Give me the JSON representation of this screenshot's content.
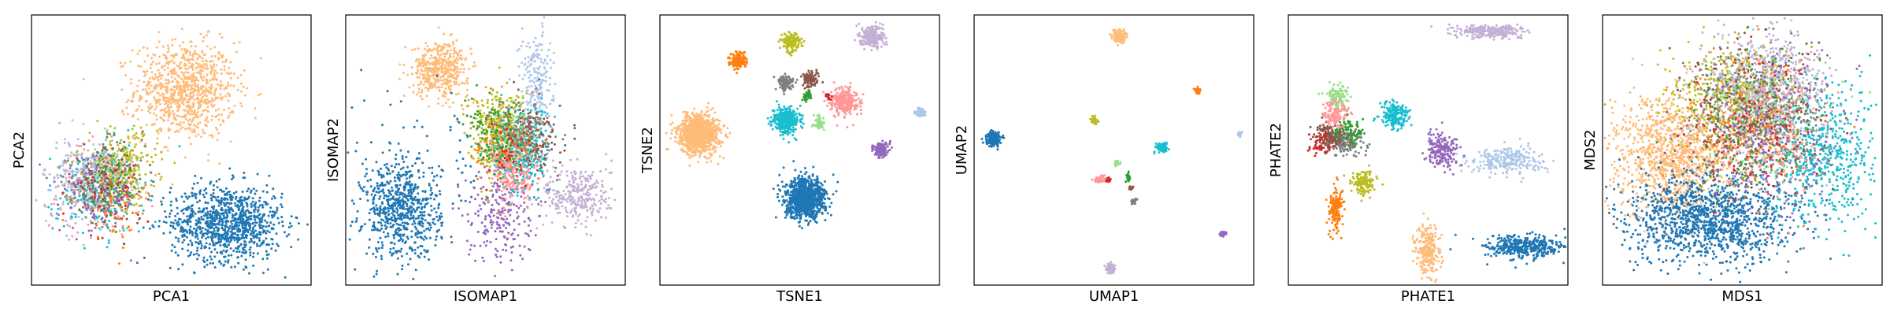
{
  "palette": {
    "blue": "#1f77b4",
    "peach": "#ffbb78",
    "orange": "#ff7f0e",
    "olive": "#bcbd22",
    "lilac": "#c5b0d5",
    "gray": "#7f7f7f",
    "brown": "#8c564b",
    "green": "#2ca02c",
    "red": "#d62728",
    "pink": "#ff9896",
    "cyan": "#17becf",
    "lightgreen": "#98df8a",
    "purple": "#9467bd",
    "lightblue": "#aec7e8"
  },
  "chart_data": [
    {
      "type": "scatter",
      "title": "",
      "xlabel": "PCA1",
      "ylabel": "PCA2",
      "xlim": [
        0,
        100
      ],
      "ylim": [
        0,
        100
      ],
      "grid": false,
      "legend": "none",
      "clusters": [
        {
          "color": "peach",
          "cx": 55,
          "cy": 72,
          "sx": 9,
          "sy": 9,
          "n": 900
        },
        {
          "color": "blue",
          "cx": 70,
          "cy": 23,
          "sx": 10,
          "sy": 7,
          "n": 1000
        },
        {
          "color": "lilac",
          "cx": 18,
          "cy": 38,
          "sx": 7,
          "sy": 8,
          "n": 180
        },
        {
          "color": "pink",
          "cx": 25,
          "cy": 36,
          "sx": 7,
          "sy": 8,
          "n": 180
        },
        {
          "color": "cyan",
          "cx": 24,
          "cy": 34,
          "sx": 8,
          "sy": 8,
          "n": 200
        },
        {
          "color": "olive",
          "cx": 33,
          "cy": 44,
          "sx": 6,
          "sy": 7,
          "n": 200
        },
        {
          "color": "gray",
          "cx": 26,
          "cy": 38,
          "sx": 7,
          "sy": 7,
          "n": 130
        },
        {
          "color": "brown",
          "cx": 27,
          "cy": 37,
          "sx": 7,
          "sy": 7,
          "n": 100
        },
        {
          "color": "purple",
          "cx": 24,
          "cy": 33,
          "sx": 7,
          "sy": 7,
          "n": 120
        },
        {
          "color": "green",
          "cx": 28,
          "cy": 38,
          "sx": 6,
          "sy": 7,
          "n": 80
        },
        {
          "color": "orange",
          "cx": 30,
          "cy": 32,
          "sx": 7,
          "sy": 7,
          "n": 90
        },
        {
          "color": "lightblue",
          "cx": 20,
          "cy": 40,
          "sx": 6,
          "sy": 7,
          "n": 100
        },
        {
          "color": "lightgreen",
          "cx": 28,
          "cy": 42,
          "sx": 6,
          "sy": 6,
          "n": 60
        },
        {
          "color": "red",
          "cx": 26,
          "cy": 36,
          "sx": 6,
          "sy": 6,
          "n": 40
        }
      ]
    },
    {
      "type": "scatter",
      "title": "",
      "xlabel": "ISOMAP1",
      "ylabel": "ISOMAP2",
      "xlim": [
        0,
        100
      ],
      "ylim": [
        0,
        100
      ],
      "grid": false,
      "legend": "none",
      "clusters": [
        {
          "color": "blue",
          "cx": 20,
          "cy": 28,
          "sx": 7,
          "sy": 9,
          "n": 700
        },
        {
          "color": "peach",
          "cx": 34,
          "cy": 80,
          "sx": 5,
          "sy": 5,
          "n": 450
        },
        {
          "color": "lightblue",
          "cx": 68,
          "cy": 76,
          "sx": 3,
          "sy": 10,
          "n": 200
        },
        {
          "color": "lilac",
          "cx": 83,
          "cy": 33,
          "sx": 6,
          "sy": 6,
          "n": 300
        },
        {
          "color": "purple",
          "cx": 55,
          "cy": 28,
          "sx": 6,
          "sy": 10,
          "n": 250
        },
        {
          "color": "olive",
          "cx": 54,
          "cy": 57,
          "sx": 5,
          "sy": 8,
          "n": 350
        },
        {
          "color": "cyan",
          "cx": 63,
          "cy": 50,
          "sx": 5,
          "sy": 8,
          "n": 350
        },
        {
          "color": "pink",
          "cx": 60,
          "cy": 42,
          "sx": 4,
          "sy": 6,
          "n": 200
        },
        {
          "color": "brown",
          "cx": 66,
          "cy": 55,
          "sx": 5,
          "sy": 6,
          "n": 160
        },
        {
          "color": "gray",
          "cx": 62,
          "cy": 56,
          "sx": 5,
          "sy": 6,
          "n": 160
        },
        {
          "color": "green",
          "cx": 53,
          "cy": 55,
          "sx": 5,
          "sy": 6,
          "n": 120
        },
        {
          "color": "orange",
          "cx": 57,
          "cy": 52,
          "sx": 6,
          "sy": 7,
          "n": 100
        },
        {
          "color": "lightgreen",
          "cx": 60,
          "cy": 55,
          "sx": 4,
          "sy": 6,
          "n": 80
        },
        {
          "color": "red",
          "cx": 58,
          "cy": 48,
          "sx": 4,
          "sy": 5,
          "n": 40
        },
        {
          "color": "blue",
          "cx": 30,
          "cy": 50,
          "sx": 15,
          "sy": 15,
          "n": 60
        }
      ]
    },
    {
      "type": "scatter",
      "title": "",
      "xlabel": "TSNE1",
      "ylabel": "TSNE2",
      "xlim": [
        0,
        100
      ],
      "ylim": [
        0,
        100
      ],
      "grid": false,
      "legend": "none",
      "clusters": [
        {
          "color": "peach",
          "cx": 14,
          "cy": 56,
          "sx": 3.6,
          "sy": 3.6,
          "n": 1000
        },
        {
          "color": "blue",
          "cx": 52,
          "cy": 32,
          "sx": 3.6,
          "sy": 3.6,
          "n": 1000
        },
        {
          "color": "orange",
          "cx": 28,
          "cy": 83,
          "sx": 1.6,
          "sy": 1.6,
          "n": 140
        },
        {
          "color": "olive",
          "cx": 47,
          "cy": 90,
          "sx": 1.6,
          "sy": 1.6,
          "n": 160
        },
        {
          "color": "lilac",
          "cx": 76,
          "cy": 92,
          "sx": 2,
          "sy": 2,
          "n": 260
        },
        {
          "color": "gray",
          "cx": 45,
          "cy": 75,
          "sx": 1.4,
          "sy": 1.4,
          "n": 110
        },
        {
          "color": "brown",
          "cx": 54,
          "cy": 76,
          "sx": 1.4,
          "sy": 1.4,
          "n": 110
        },
        {
          "color": "pink",
          "cx": 66,
          "cy": 68,
          "sx": 2.4,
          "sy": 2.4,
          "n": 300
        },
        {
          "color": "cyan",
          "cx": 45,
          "cy": 61,
          "sx": 2.4,
          "sy": 2.4,
          "n": 350
        },
        {
          "color": "green",
          "cx": 53,
          "cy": 70,
          "sx": 0.8,
          "sy": 0.8,
          "n": 40
        },
        {
          "color": "lightgreen",
          "cx": 57,
          "cy": 60,
          "sx": 1,
          "sy": 1,
          "n": 60
        },
        {
          "color": "purple",
          "cx": 79,
          "cy": 50,
          "sx": 1.4,
          "sy": 1.4,
          "n": 140
        },
        {
          "color": "lightblue",
          "cx": 93,
          "cy": 64,
          "sx": 0.8,
          "sy": 0.8,
          "n": 60
        },
        {
          "color": "red",
          "cx": 60,
          "cy": 70,
          "sx": 0.6,
          "sy": 0.6,
          "n": 15
        }
      ]
    },
    {
      "type": "scatter",
      "title": "",
      "xlabel": "UMAP1",
      "ylabel": "UMAP2",
      "xlim": [
        0,
        100
      ],
      "ylim": [
        0,
        100
      ],
      "grid": false,
      "legend": "none",
      "clusters": [
        {
          "color": "peach",
          "cx": 52,
          "cy": 92,
          "sx": 1.2,
          "sy": 1.2,
          "n": 180
        },
        {
          "color": "blue",
          "cx": 7,
          "cy": 54,
          "sx": 1.2,
          "sy": 1.2,
          "n": 200
        },
        {
          "color": "orange",
          "cx": 80,
          "cy": 72,
          "sx": 0.6,
          "sy": 0.6,
          "n": 40
        },
        {
          "color": "olive",
          "cx": 43,
          "cy": 61,
          "sx": 0.6,
          "sy": 0.6,
          "n": 50
        },
        {
          "color": "cyan",
          "cx": 67,
          "cy": 51,
          "sx": 1,
          "sy": 0.8,
          "n": 100
        },
        {
          "color": "lightblue",
          "cx": 95,
          "cy": 56,
          "sx": 0.4,
          "sy": 0.4,
          "n": 15
        },
        {
          "color": "lightgreen",
          "cx": 51,
          "cy": 45,
          "sx": 0.5,
          "sy": 0.6,
          "n": 25
        },
        {
          "color": "pink",
          "cx": 45,
          "cy": 39,
          "sx": 1,
          "sy": 0.6,
          "n": 60
        },
        {
          "color": "green",
          "cx": 55,
          "cy": 40,
          "sx": 0.4,
          "sy": 0.8,
          "n": 25
        },
        {
          "color": "red",
          "cx": 48,
          "cy": 39,
          "sx": 0.4,
          "sy": 0.4,
          "n": 15
        },
        {
          "color": "gray",
          "cx": 57,
          "cy": 31,
          "sx": 0.5,
          "sy": 0.5,
          "n": 30
        },
        {
          "color": "purple",
          "cx": 89,
          "cy": 19,
          "sx": 0.5,
          "sy": 0.5,
          "n": 30
        },
        {
          "color": "lilac",
          "cx": 49,
          "cy": 6,
          "sx": 0.9,
          "sy": 0.9,
          "n": 80
        },
        {
          "color": "brown",
          "cx": 56,
          "cy": 36,
          "sx": 0.4,
          "sy": 0.4,
          "n": 12
        }
      ]
    },
    {
      "type": "scatter",
      "title": "",
      "xlabel": "PHATE1",
      "ylabel": "PHATE2",
      "xlim": [
        0,
        100
      ],
      "ylim": [
        0,
        100
      ],
      "grid": false,
      "legend": "none",
      "clusters": [
        {
          "color": "lilac",
          "cx": 73,
          "cy": 94,
          "sx": 6,
          "sy": 1.2,
          "n": 250
        },
        {
          "color": "lightblue",
          "cx": 78,
          "cy": 46,
          "sx": 7,
          "sy": 2.5,
          "n": 250
        },
        {
          "color": "blue",
          "cx": 84,
          "cy": 14,
          "sx": 7,
          "sy": 2.2,
          "n": 400
        },
        {
          "color": "peach",
          "cx": 50,
          "cy": 12,
          "sx": 2.2,
          "sy": 5,
          "n": 250
        },
        {
          "color": "orange",
          "cx": 17,
          "cy": 28,
          "sx": 1.3,
          "sy": 4,
          "n": 150
        },
        {
          "color": "olive",
          "cx": 27,
          "cy": 38,
          "sx": 2,
          "sy": 2.5,
          "n": 150
        },
        {
          "color": "cyan",
          "cx": 38,
          "cy": 63,
          "sx": 2.5,
          "sy": 2.5,
          "n": 200
        },
        {
          "color": "purple",
          "cx": 55,
          "cy": 50,
          "sx": 3,
          "sy": 3,
          "n": 200
        },
        {
          "color": "gray",
          "cx": 20,
          "cy": 53,
          "sx": 3.5,
          "sy": 2.5,
          "n": 180
        },
        {
          "color": "brown",
          "cx": 15,
          "cy": 55,
          "sx": 2.5,
          "sy": 2.5,
          "n": 150
        },
        {
          "color": "pink",
          "cx": 17,
          "cy": 64,
          "sx": 2.5,
          "sy": 3,
          "n": 150
        },
        {
          "color": "lightgreen",
          "cx": 18,
          "cy": 70,
          "sx": 2,
          "sy": 2,
          "n": 90
        },
        {
          "color": "green",
          "cx": 22,
          "cy": 57,
          "sx": 2.5,
          "sy": 2,
          "n": 70
        },
        {
          "color": "red",
          "cx": 11,
          "cy": 52,
          "sx": 2,
          "sy": 2,
          "n": 40
        }
      ]
    },
    {
      "type": "scatter",
      "title": "",
      "xlabel": "MDS1",
      "ylabel": "MDS2",
      "xlim": [
        0,
        100
      ],
      "ylim": [
        0,
        100
      ],
      "grid": false,
      "legend": "none",
      "clusters": [
        {
          "color": "peach",
          "cx": 25,
          "cy": 48,
          "sx": 11,
          "sy": 11,
          "n": 1100
        },
        {
          "color": "blue",
          "cx": 38,
          "cy": 25,
          "sx": 15,
          "sy": 8,
          "n": 1300
        },
        {
          "color": "lilac",
          "cx": 58,
          "cy": 76,
          "sx": 10,
          "sy": 10,
          "n": 500
        },
        {
          "color": "cyan",
          "cx": 78,
          "cy": 48,
          "sx": 10,
          "sy": 13,
          "n": 600
        },
        {
          "color": "pink",
          "cx": 60,
          "cy": 58,
          "sx": 9,
          "sy": 11,
          "n": 400
        },
        {
          "color": "olive",
          "cx": 42,
          "cy": 70,
          "sx": 10,
          "sy": 10,
          "n": 350
        },
        {
          "color": "gray",
          "cx": 55,
          "cy": 60,
          "sx": 12,
          "sy": 14,
          "n": 280
        },
        {
          "color": "brown",
          "cx": 52,
          "cy": 62,
          "sx": 12,
          "sy": 14,
          "n": 250
        },
        {
          "color": "purple",
          "cx": 60,
          "cy": 55,
          "sx": 12,
          "sy": 14,
          "n": 250
        },
        {
          "color": "green",
          "cx": 55,
          "cy": 62,
          "sx": 11,
          "sy": 13,
          "n": 180
        },
        {
          "color": "orange",
          "cx": 50,
          "cy": 60,
          "sx": 13,
          "sy": 14,
          "n": 200
        },
        {
          "color": "lightblue",
          "cx": 58,
          "cy": 68,
          "sx": 11,
          "sy": 11,
          "n": 200
        },
        {
          "color": "lightgreen",
          "cx": 55,
          "cy": 60,
          "sx": 11,
          "sy": 13,
          "n": 150
        },
        {
          "color": "red",
          "cx": 55,
          "cy": 58,
          "sx": 11,
          "sy": 13,
          "n": 120
        }
      ]
    }
  ]
}
